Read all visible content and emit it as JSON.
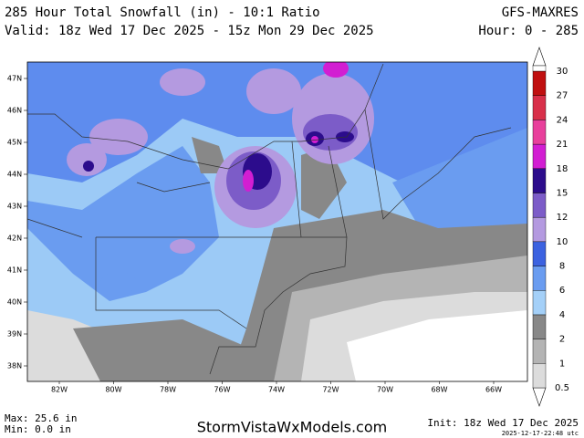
{
  "header": {
    "title": "285 Hour Total Snowfall (in) - 10:1 Ratio",
    "valid": "Valid: 18z Wed 17 Dec 2025 - 15z Mon 29 Dec 2025",
    "model": "GFS-MAXRES",
    "hours": "Hour: 0 - 285"
  },
  "map": {
    "lat_labels": [
      "47N",
      "46N",
      "45N",
      "44N",
      "43N",
      "42N",
      "41N",
      "40N",
      "39N",
      "38N"
    ],
    "lon_labels": [
      "82W",
      "80W",
      "78W",
      "76W",
      "74W",
      "72W",
      "70W",
      "68W",
      "66W"
    ]
  },
  "colorbar": {
    "ticks": [
      "0.5",
      "1",
      "2",
      "4",
      "6",
      "8",
      "10",
      "12",
      "15",
      "18",
      "21",
      "24",
      "27",
      "30"
    ],
    "colors": [
      "#dcdcdc",
      "#b4b4b4",
      "#888888",
      "#a4d0f8",
      "#6a9cf0",
      "#3c62e0",
      "#b49ae0",
      "#7c5cc8",
      "#2c0c8c",
      "#d21ed2",
      "#e8409c",
      "#d8304a",
      "#c01010"
    ]
  },
  "footer": {
    "max": "Max: 25.6 in",
    "min": "Min: 0.0 in",
    "site": "StormVistaWxModels.com",
    "init": "Init: 18z Wed 17 Dec 2025",
    "stamp": "2025-12-17-22:48 utc"
  }
}
